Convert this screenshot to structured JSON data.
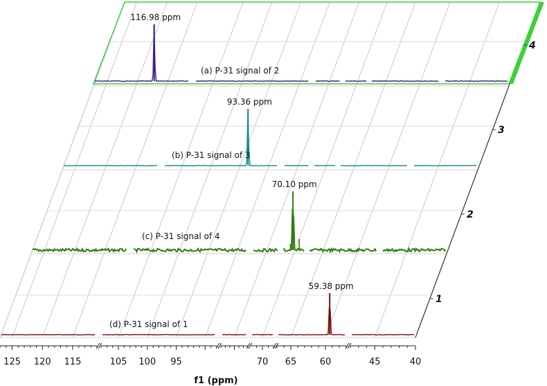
{
  "chart_data": {
    "type": "line",
    "xlabel": "f1 (ppm)",
    "x_ticks": [
      "125",
      "120",
      "115",
      "105",
      "100",
      "95",
      "70",
      "65",
      "60",
      "45",
      "40"
    ],
    "x_reversed": true,
    "series_index_labels": [
      "1",
      "2",
      "3",
      "4"
    ],
    "grid": true,
    "series": [
      {
        "index": "1",
        "label": "(d) P-31 signal of 1",
        "color": "#7b0f0f",
        "peak_ppm": 59.38,
        "peak_label": "59.38 ppm"
      },
      {
        "index": "2",
        "label": "(c) P-31 signal of 4",
        "color": "#2f7d0f",
        "peak_ppm": 70.1,
        "peak_label": "70.10 ppm",
        "noisy": true
      },
      {
        "index": "3",
        "label": "(b) P-31 signal of 3",
        "color": "#138a8a",
        "peak_ppm": 93.36,
        "peak_label": "93.36 ppm"
      },
      {
        "index": "4",
        "label": "(a) P-31 signal of 2",
        "color": "#3b1a8c",
        "peak_ppm": 116.98,
        "peak_label": "116.98 ppm",
        "selected": true
      }
    ],
    "selection_color": "#3cd03c"
  }
}
